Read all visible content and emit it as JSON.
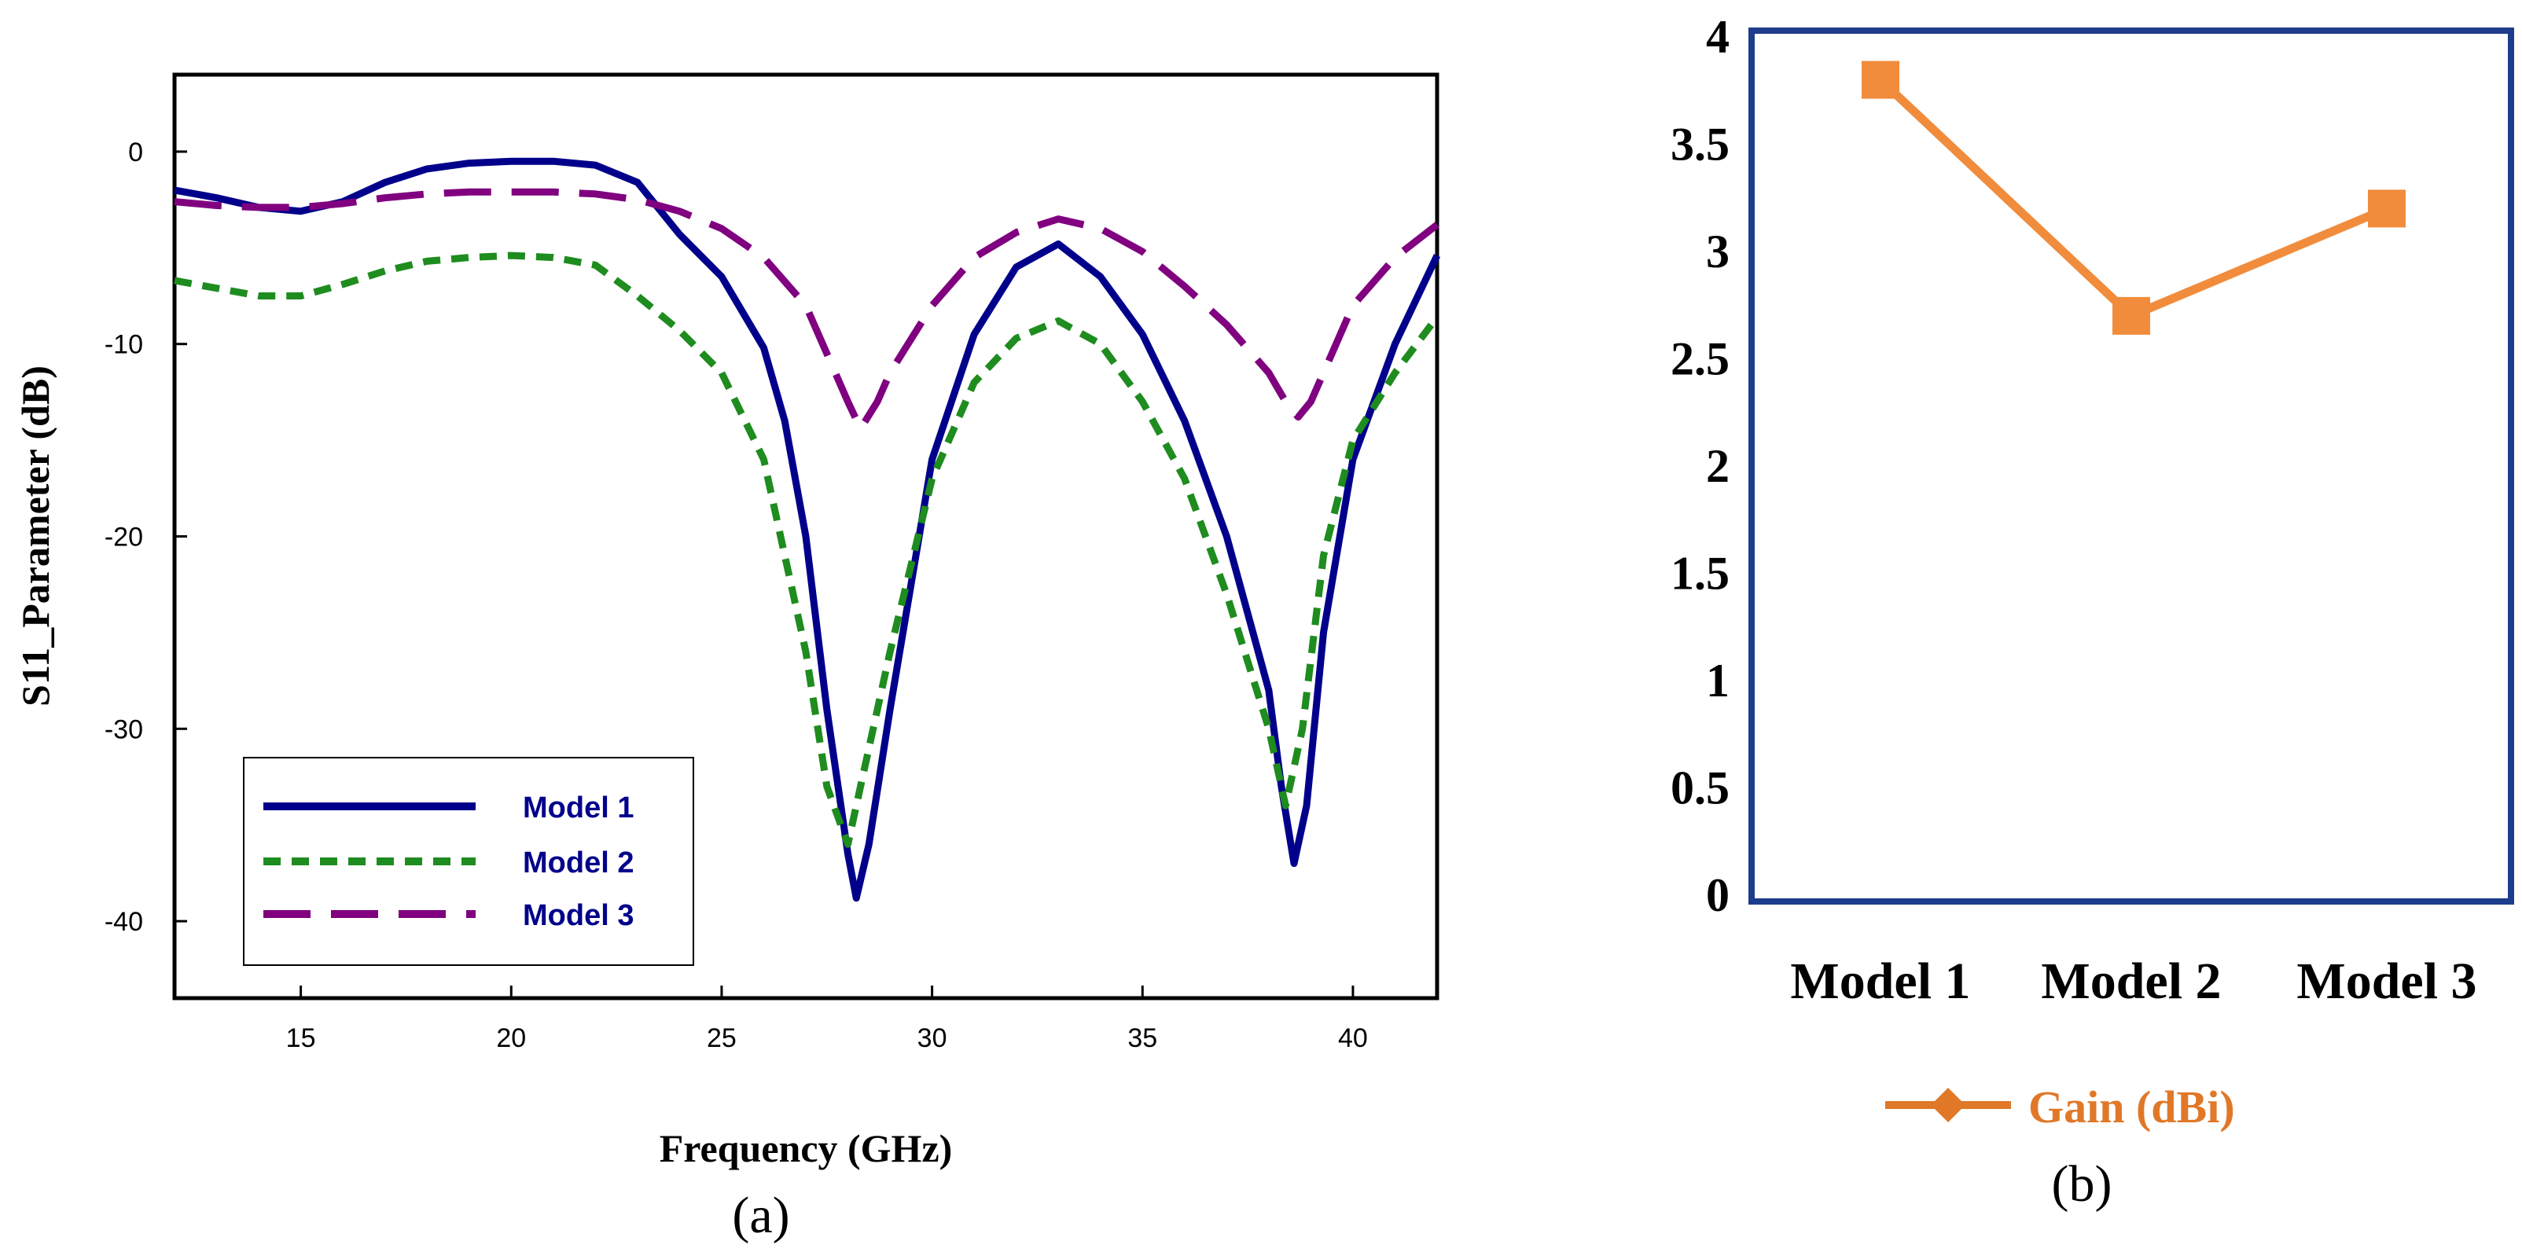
{
  "chart_data": [
    {
      "type": "line",
      "panel_label": "(a)",
      "xlabel": "Frequency (GHz)",
      "ylabel": "S11_Parameter (dB)",
      "xlim": [
        12,
        42
      ],
      "ylim": [
        -44,
        4
      ],
      "xticks": [
        15,
        20,
        25,
        30,
        35,
        40
      ],
      "yticks": [
        0,
        -10,
        -20,
        -30,
        -40
      ],
      "legend_position": "bottom-left",
      "series": [
        {
          "name": "Model 1",
          "color": "#00008b",
          "dash": "solid",
          "x": [
            12,
            13,
            14,
            15,
            16,
            17,
            18,
            19,
            20,
            21,
            22,
            23,
            24,
            25,
            26,
            26.5,
            27,
            27.5,
            28,
            28.2,
            28.5,
            29,
            30,
            31,
            32,
            33,
            34,
            35,
            36,
            37,
            38,
            38.3,
            38.6,
            38.9,
            39.3,
            40,
            41,
            42
          ],
          "y": [
            -2,
            -2.4,
            -2.9,
            -3.1,
            -2.6,
            -1.6,
            -0.9,
            -0.6,
            -0.5,
            -0.5,
            -0.7,
            -1.6,
            -4.3,
            -6.5,
            -10.2,
            -14,
            -20,
            -29,
            -36.5,
            -38.8,
            -36,
            -29,
            -16,
            -9.5,
            -6,
            -4.8,
            -6.5,
            -9.5,
            -14,
            -20,
            -28,
            -33,
            -37,
            -34,
            -25,
            -16,
            -10,
            -5.4
          ]
        },
        {
          "name": "Model 2",
          "color": "#1e8c1e",
          "dash": "short-dash",
          "x": [
            12,
            13,
            14,
            15,
            16,
            17,
            18,
            19,
            20,
            21,
            22,
            23,
            24,
            25,
            26,
            27,
            27.5,
            28,
            28.5,
            29,
            30,
            31,
            32,
            33,
            34,
            35,
            36,
            37,
            38,
            38.4,
            38.8,
            39.3,
            40,
            41,
            42
          ],
          "y": [
            -6.7,
            -7.1,
            -7.5,
            -7.5,
            -6.9,
            -6.2,
            -5.7,
            -5.5,
            -5.4,
            -5.5,
            -5.9,
            -7.5,
            -9.3,
            -11.5,
            -16,
            -26,
            -33,
            -36,
            -31,
            -26,
            -17,
            -12,
            -9.7,
            -8.8,
            -10,
            -13,
            -17,
            -23,
            -30,
            -34,
            -30,
            -21,
            -15,
            -11.5,
            -8.6
          ]
        },
        {
          "name": "Model 3",
          "color": "#800080",
          "dash": "long-dash",
          "x": [
            12,
            13,
            14,
            15,
            16,
            17,
            18,
            19,
            20,
            21,
            22,
            23,
            24,
            25,
            26,
            27,
            27.5,
            28,
            28.3,
            28.7,
            29,
            30,
            31,
            32,
            33,
            34,
            35,
            36,
            37,
            38,
            38.4,
            38.7,
            39,
            39.5,
            40,
            41,
            42
          ],
          "y": [
            -2.6,
            -2.8,
            -2.9,
            -2.9,
            -2.7,
            -2.4,
            -2.2,
            -2.1,
            -2.1,
            -2.1,
            -2.2,
            -2.5,
            -3.1,
            -4,
            -5.5,
            -8,
            -10.5,
            -13,
            -14.4,
            -13,
            -11.5,
            -8,
            -5.5,
            -4.2,
            -3.5,
            -4,
            -5.2,
            -7,
            -9,
            -11.5,
            -13,
            -13.8,
            -13,
            -10.5,
            -8,
            -5.5,
            -3.8
          ]
        }
      ]
    },
    {
      "type": "line",
      "panel_label": "(b)",
      "categories": [
        "Model 1",
        "Model 2",
        "Model 3"
      ],
      "series": [
        {
          "name": "Gain (dBi)",
          "color": "#f08c3c",
          "values": [
            3.8,
            2.7,
            3.2
          ]
        }
      ],
      "ylim": [
        0,
        4
      ],
      "yticks": [
        "0",
        "0.5",
        "1",
        "1.5",
        "2",
        "2.5",
        "3",
        "3.5",
        "4"
      ],
      "legend_position": "bottom",
      "legend_label_color": "#e07828"
    }
  ]
}
